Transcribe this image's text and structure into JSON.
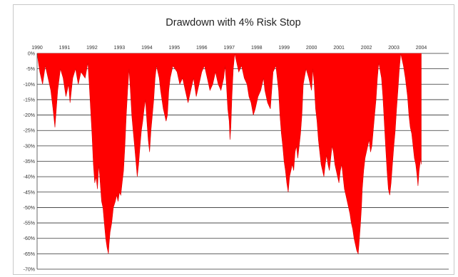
{
  "chart_data": {
    "type": "area",
    "title": "Drawdown with 4% Risk Stop",
    "xlabel": "",
    "ylabel": "",
    "x_tick_labels": [
      "1990",
      "1991",
      "1992",
      "1993",
      "1994",
      "1995",
      "1996",
      "1997",
      "1998",
      "1999",
      "2000",
      "2001",
      "2002",
      "2003",
      "2004"
    ],
    "y_tick_labels": [
      "0%",
      "-5%",
      "-10%",
      "-15%",
      "-20%",
      "-25%",
      "-30%",
      "-35%",
      "-40%",
      "-45%",
      "-50%",
      "-55%",
      "-60%",
      "-65%",
      "-70%"
    ],
    "xlim": [
      1990.0,
      2005.0
    ],
    "ylim": [
      -70,
      0
    ],
    "grid": true,
    "x_axis_position": "top",
    "fill_color": "#ff0000",
    "series": [
      {
        "values": [
          [
            1990.0,
            0
          ],
          [
            1990.1,
            -6
          ],
          [
            1990.2,
            -10
          ],
          [
            1990.3,
            -4
          ],
          [
            1990.4,
            -8
          ],
          [
            1990.5,
            -12
          ],
          [
            1990.58,
            -18
          ],
          [
            1990.65,
            -24
          ],
          [
            1990.75,
            -12
          ],
          [
            1990.85,
            -5
          ],
          [
            1990.95,
            -8
          ],
          [
            1991.05,
            -14
          ],
          [
            1991.15,
            -10
          ],
          [
            1991.2,
            -16
          ],
          [
            1991.3,
            -8
          ],
          [
            1991.4,
            -5
          ],
          [
            1991.5,
            -10
          ],
          [
            1991.6,
            -6
          ],
          [
            1991.75,
            -8
          ],
          [
            1991.85,
            -3
          ],
          [
            1991.9,
            -10
          ],
          [
            1991.95,
            -18
          ],
          [
            1992.0,
            -26
          ],
          [
            1992.05,
            -36
          ],
          [
            1992.1,
            -42
          ],
          [
            1992.15,
            -40
          ],
          [
            1992.2,
            -44
          ],
          [
            1992.25,
            -36
          ],
          [
            1992.3,
            -42
          ],
          [
            1992.35,
            -48
          ],
          [
            1992.4,
            -50
          ],
          [
            1992.45,
            -55
          ],
          [
            1992.5,
            -60
          ],
          [
            1992.55,
            -63
          ],
          [
            1992.6,
            -65
          ],
          [
            1992.62,
            -62
          ],
          [
            1992.66,
            -58
          ],
          [
            1992.72,
            -55
          ],
          [
            1992.78,
            -50
          ],
          [
            1992.85,
            -48
          ],
          [
            1992.9,
            -46
          ],
          [
            1992.95,
            -48
          ],
          [
            1993.0,
            -45
          ],
          [
            1993.05,
            -46
          ],
          [
            1993.1,
            -42
          ],
          [
            1993.15,
            -38
          ],
          [
            1993.2,
            -30
          ],
          [
            1993.25,
            -20
          ],
          [
            1993.3,
            -12
          ],
          [
            1993.35,
            -5
          ],
          [
            1993.4,
            -12
          ],
          [
            1993.45,
            -20
          ],
          [
            1993.5,
            -25
          ],
          [
            1993.55,
            -30
          ],
          [
            1993.6,
            -35
          ],
          [
            1993.65,
            -40
          ],
          [
            1993.7,
            -36
          ],
          [
            1993.75,
            -30
          ],
          [
            1993.8,
            -25
          ],
          [
            1993.85,
            -22
          ],
          [
            1993.9,
            -18
          ],
          [
            1993.95,
            -15
          ],
          [
            1994.0,
            -22
          ],
          [
            1994.05,
            -28
          ],
          [
            1994.1,
            -32
          ],
          [
            1994.15,
            -25
          ],
          [
            1994.2,
            -20
          ],
          [
            1994.25,
            -15
          ],
          [
            1994.3,
            -8
          ],
          [
            1994.35,
            -4
          ],
          [
            1994.45,
            -8
          ],
          [
            1994.5,
            -12
          ],
          [
            1994.55,
            -15
          ],
          [
            1994.6,
            -18
          ],
          [
            1994.65,
            -20
          ],
          [
            1994.7,
            -22
          ],
          [
            1994.75,
            -20
          ],
          [
            1994.8,
            -12
          ],
          [
            1994.85,
            -8
          ],
          [
            1994.95,
            -4
          ],
          [
            1995.1,
            -6
          ],
          [
            1995.2,
            -10
          ],
          [
            1995.3,
            -8
          ],
          [
            1995.4,
            -12
          ],
          [
            1995.5,
            -16
          ],
          [
            1995.6,
            -12
          ],
          [
            1995.7,
            -8
          ],
          [
            1995.8,
            -14
          ],
          [
            1995.9,
            -10
          ],
          [
            1996.0,
            -6
          ],
          [
            1996.1,
            -4
          ],
          [
            1996.2,
            -8
          ],
          [
            1996.3,
            -12
          ],
          [
            1996.4,
            -10
          ],
          [
            1996.5,
            -6
          ],
          [
            1996.6,
            -10
          ],
          [
            1996.7,
            -12
          ],
          [
            1996.8,
            -8
          ],
          [
            1996.85,
            -4
          ],
          [
            1996.9,
            -10
          ],
          [
            1996.95,
            -18
          ],
          [
            1997.0,
            -22
          ],
          [
            1997.03,
            -28
          ],
          [
            1997.06,
            -24
          ],
          [
            1997.1,
            -14
          ],
          [
            1997.15,
            -5
          ],
          [
            1997.2,
            0
          ],
          [
            1997.35,
            -6
          ],
          [
            1997.45,
            -4
          ],
          [
            1997.55,
            -8
          ],
          [
            1997.65,
            -10
          ],
          [
            1997.72,
            -14
          ],
          [
            1997.8,
            -16
          ],
          [
            1997.88,
            -20
          ],
          [
            1997.95,
            -18
          ],
          [
            1998.05,
            -14
          ],
          [
            1998.15,
            -12
          ],
          [
            1998.25,
            -8
          ],
          [
            1998.3,
            -12
          ],
          [
            1998.4,
            -16
          ],
          [
            1998.5,
            -18
          ],
          [
            1998.55,
            -12
          ],
          [
            1998.6,
            -6
          ],
          [
            1998.7,
            -4
          ],
          [
            1998.8,
            -12
          ],
          [
            1998.85,
            -20
          ],
          [
            1998.9,
            -26
          ],
          [
            1998.95,
            -30
          ],
          [
            1999.0,
            -35
          ],
          [
            1999.05,
            -38
          ],
          [
            1999.1,
            -42
          ],
          [
            1999.15,
            -45
          ],
          [
            1999.2,
            -40
          ],
          [
            1999.25,
            -38
          ],
          [
            1999.3,
            -36
          ],
          [
            1999.35,
            -38
          ],
          [
            1999.4,
            -32
          ],
          [
            1999.45,
            -30
          ],
          [
            1999.5,
            -34
          ],
          [
            1999.55,
            -30
          ],
          [
            1999.6,
            -26
          ],
          [
            1999.65,
            -20
          ],
          [
            1999.7,
            -10
          ],
          [
            1999.8,
            -5
          ],
          [
            1999.9,
            -8
          ],
          [
            2000.0,
            -12
          ],
          [
            2000.05,
            -5
          ],
          [
            2000.1,
            -10
          ],
          [
            2000.15,
            -18
          ],
          [
            2000.2,
            -22
          ],
          [
            2000.25,
            -28
          ],
          [
            2000.3,
            -32
          ],
          [
            2000.35,
            -36
          ],
          [
            2000.4,
            -38
          ],
          [
            2000.45,
            -40
          ],
          [
            2000.5,
            -36
          ],
          [
            2000.55,
            -33
          ],
          [
            2000.6,
            -36
          ],
          [
            2000.65,
            -38
          ],
          [
            2000.7,
            -34
          ],
          [
            2000.75,
            -30
          ],
          [
            2000.8,
            -32
          ],
          [
            2000.85,
            -36
          ],
          [
            2000.9,
            -38
          ],
          [
            2000.95,
            -40
          ],
          [
            2001.0,
            -42
          ],
          [
            2001.05,
            -38
          ],
          [
            2001.1,
            -36
          ],
          [
            2001.15,
            -40
          ],
          [
            2001.2,
            -44
          ],
          [
            2001.25,
            -46
          ],
          [
            2001.3,
            -48
          ],
          [
            2001.35,
            -50
          ],
          [
            2001.4,
            -52
          ],
          [
            2001.45,
            -55
          ],
          [
            2001.5,
            -57
          ],
          [
            2001.55,
            -60
          ],
          [
            2001.6,
            -62
          ],
          [
            2001.65,
            -64
          ],
          [
            2001.7,
            -65
          ],
          [
            2001.73,
            -62
          ],
          [
            2001.78,
            -56
          ],
          [
            2001.82,
            -50
          ],
          [
            2001.85,
            -44
          ],
          [
            2001.9,
            -38
          ],
          [
            2001.95,
            -34
          ],
          [
            2002.0,
            -32
          ],
          [
            2002.05,
            -30
          ],
          [
            2002.1,
            -28
          ],
          [
            2002.15,
            -32
          ],
          [
            2002.2,
            -30
          ],
          [
            2002.25,
            -25
          ],
          [
            2002.3,
            -20
          ],
          [
            2002.35,
            -15
          ],
          [
            2002.4,
            -8
          ],
          [
            2002.45,
            -3
          ],
          [
            2002.55,
            -8
          ],
          [
            2002.6,
            -14
          ],
          [
            2002.65,
            -22
          ],
          [
            2002.7,
            -30
          ],
          [
            2002.75,
            -38
          ],
          [
            2002.8,
            -44
          ],
          [
            2002.85,
            -46
          ],
          [
            2002.9,
            -42
          ],
          [
            2002.95,
            -36
          ],
          [
            2003.0,
            -30
          ],
          [
            2003.05,
            -25
          ],
          [
            2003.1,
            -18
          ],
          [
            2003.15,
            -12
          ],
          [
            2003.2,
            -5
          ],
          [
            2003.25,
            0
          ],
          [
            2003.35,
            -4
          ],
          [
            2003.42,
            -8
          ],
          [
            2003.5,
            -14
          ],
          [
            2003.55,
            -20
          ],
          [
            2003.6,
            -24
          ],
          [
            2003.65,
            -26
          ],
          [
            2003.7,
            -30
          ],
          [
            2003.75,
            -34
          ],
          [
            2003.8,
            -36
          ],
          [
            2003.85,
            -40
          ],
          [
            2003.88,
            -43
          ],
          [
            2003.92,
            -38
          ],
          [
            2003.95,
            -36
          ],
          [
            2003.98,
            -34
          ],
          [
            2004.0,
            -36
          ]
        ]
      }
    ]
  }
}
